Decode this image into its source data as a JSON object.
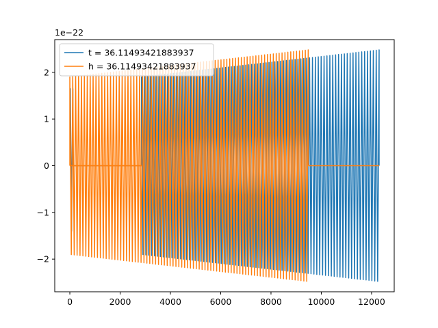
{
  "chart_data": {
    "type": "line",
    "title": "",
    "xlabel": "",
    "ylabel": "",
    "xlim": [
      -600,
      12900
    ],
    "ylim": [
      -2.7,
      2.7
    ],
    "y_offset_label": "1e−22",
    "x_ticks": [
      {
        "value": 0,
        "label": "0"
      },
      {
        "value": 2000,
        "label": "2000"
      },
      {
        "value": 4000,
        "label": "4000"
      },
      {
        "value": 6000,
        "label": "6000"
      },
      {
        "value": 8000,
        "label": "8000"
      },
      {
        "value": 10000,
        "label": "10000"
      },
      {
        "value": 12000,
        "label": "12000"
      }
    ],
    "y_ticks": [
      {
        "value": -2,
        "label": "−2"
      },
      {
        "value": -1,
        "label": "−1"
      },
      {
        "value": 0,
        "label": "0"
      },
      {
        "value": 1,
        "label": "1"
      },
      {
        "value": 2,
        "label": "2"
      }
    ],
    "grid": false,
    "legend_position": "top-left",
    "series": [
      {
        "name": "t = 36.11493421883937",
        "color": "#1f77b4",
        "segments": [
          {
            "kind": "flat",
            "x_start": 0,
            "x_end": 2850,
            "value": 0
          },
          {
            "kind": "burst",
            "x_start": 20,
            "x_end": 120,
            "pos_amp": 1.65,
            "neg_amp": 1.4
          },
          {
            "kind": "oscillation",
            "x_start": 2850,
            "x_end": 12300,
            "cycles": 82,
            "amp_start": 1.9,
            "amp_end": 2.48
          }
        ]
      },
      {
        "name": "h = 36.11493421883937",
        "color": "#ff7f0e",
        "segments": [
          {
            "kind": "oscillation",
            "x_start": 0,
            "x_end": 9480,
            "cycles": 82,
            "amp_start": 1.9,
            "amp_end": 2.48
          },
          {
            "kind": "flat",
            "x_start": 0,
            "x_end": 2850,
            "value": 0
          },
          {
            "kind": "flat",
            "x_start": 9480,
            "x_end": 12300,
            "value": 0
          }
        ]
      }
    ]
  }
}
